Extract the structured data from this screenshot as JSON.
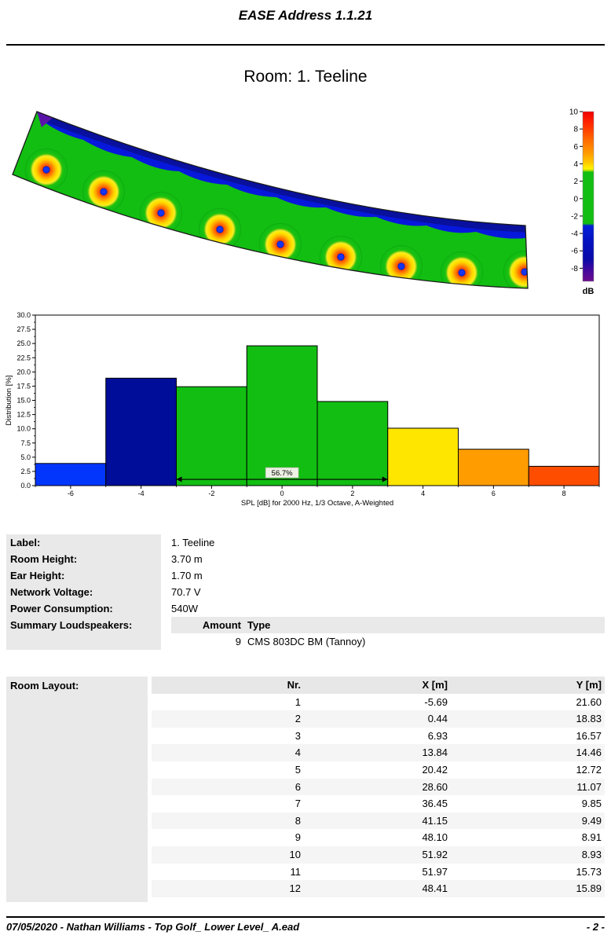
{
  "header": {
    "app_title": "EASE Address 1.1.21"
  },
  "room": {
    "title": "Room: 1. Teeline"
  },
  "map": {
    "colorbar": {
      "unit": "dB",
      "tick_values": [
        10,
        8,
        6,
        4,
        2,
        0,
        -2,
        -4,
        -6,
        -8
      ],
      "vmax": 10,
      "vmin": -9.5
    },
    "speakers": [
      [
        51,
        80
      ],
      [
        124,
        108
      ],
      [
        197,
        135
      ],
      [
        272,
        156
      ],
      [
        349,
        175
      ],
      [
        426,
        191
      ],
      [
        503,
        203
      ],
      [
        580,
        211
      ],
      [
        660,
        210
      ]
    ],
    "colors": {
      "field_green": "#12be12",
      "coverage_blue": "#0718dc",
      "deep_blue": "#0a1096",
      "purple_tip": "#5a14a8",
      "hotspot_core": "#d40000",
      "speaker_dot": "#1535f0"
    }
  },
  "chart_data": {
    "type": "bar",
    "title": "",
    "xlabel": "SPL [dB] for 2000 Hz, 1/3 Octave, A-Weighted",
    "ylabel": "Distribution [%]",
    "ylim": [
      0,
      30
    ],
    "ytick_step": 2.5,
    "xlim": [
      -7,
      9
    ],
    "xticks": [
      -6,
      -4,
      -2,
      0,
      2,
      4,
      6,
      8
    ],
    "grid": false,
    "bars": [
      {
        "from": -7,
        "to": -5,
        "value": 3.9,
        "color": "#0336fd"
      },
      {
        "from": -5,
        "to": -3,
        "value": 18.9,
        "color": "#000d99"
      },
      {
        "from": -3,
        "to": -1,
        "value": 17.4,
        "color": "#12be12"
      },
      {
        "from": -1,
        "to": 1,
        "value": 24.6,
        "color": "#12be12"
      },
      {
        "from": 1,
        "to": 3,
        "value": 14.8,
        "color": "#12be12"
      },
      {
        "from": 3,
        "to": 5,
        "value": 10.1,
        "color": "#ffe600"
      },
      {
        "from": 5,
        "to": 7,
        "value": 6.4,
        "color": "#ff9c00"
      },
      {
        "from": 7,
        "to": 9,
        "value": 3.4,
        "color": "#ff4d00"
      }
    ],
    "annotation": {
      "label": "56.7%",
      "from": -3,
      "to": 3,
      "y": 1.1
    }
  },
  "properties": {
    "rows": [
      {
        "label": "Label:",
        "value": "1. Teeline"
      },
      {
        "label": "Room Height:",
        "value": "3.70 m"
      },
      {
        "label": "Ear Height:",
        "value": "1.70 m"
      },
      {
        "label": "Network Voltage:",
        "value": "70.7 V"
      },
      {
        "label": "Power Consumption:",
        "value": "540W"
      },
      {
        "label": "Summary Loudspeakers:",
        "value": ""
      }
    ],
    "loudspeakers": {
      "amount_header": "Amount",
      "type_header": "Type",
      "rows": [
        {
          "amount": "9",
          "type": "CMS 803DC BM (Tannoy)"
        }
      ]
    }
  },
  "room_layout": {
    "label": "Room Layout:",
    "columns": [
      "Nr.",
      "X [m]",
      "Y [m]"
    ],
    "rows": [
      [
        "1",
        "-5.69",
        "21.60"
      ],
      [
        "2",
        "0.44",
        "18.83"
      ],
      [
        "3",
        "6.93",
        "16.57"
      ],
      [
        "4",
        "13.84",
        "14.46"
      ],
      [
        "5",
        "20.42",
        "12.72"
      ],
      [
        "6",
        "28.60",
        "11.07"
      ],
      [
        "7",
        "36.45",
        "9.85"
      ],
      [
        "8",
        "41.15",
        "9.49"
      ],
      [
        "9",
        "48.10",
        "8.91"
      ],
      [
        "10",
        "51.92",
        "8.93"
      ],
      [
        "11",
        "51.97",
        "15.73"
      ],
      [
        "12",
        "48.41",
        "15.89"
      ]
    ]
  },
  "footer": {
    "left": "07/05/2020 - Nathan Williams - Top Golf_ Lower Level_ A.ead",
    "page": "- 2 -"
  }
}
